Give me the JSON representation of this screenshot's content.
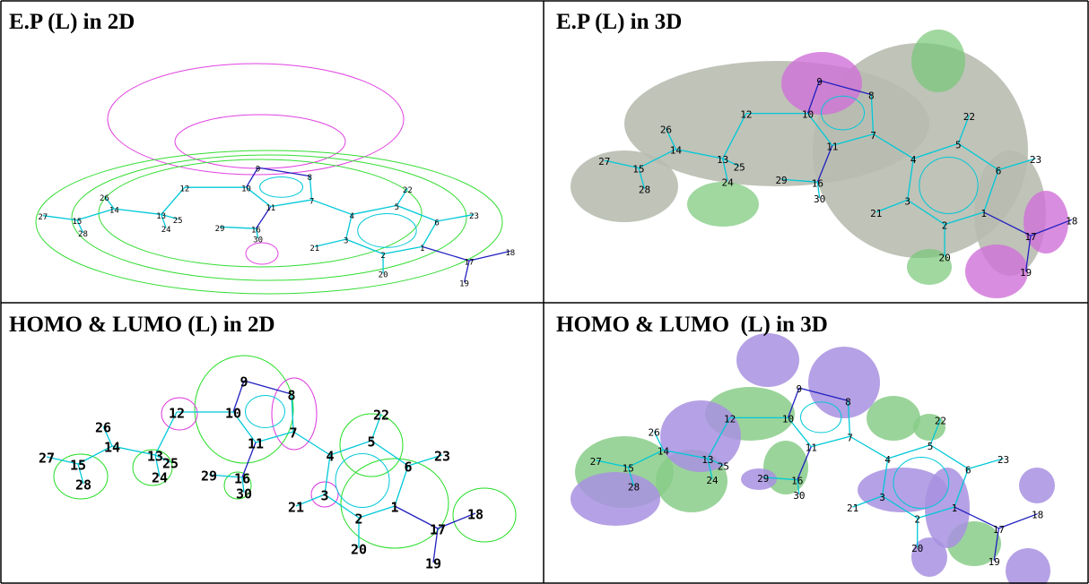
{
  "panels": [
    {
      "title": "E.P (L) in 2D",
      "atom_labels": [
        "1",
        "2",
        "3",
        "4",
        "5",
        "6",
        "7",
        "8",
        "9",
        "10",
        "11",
        "12",
        "13",
        "14",
        "15",
        "16",
        "17",
        "18",
        "19",
        "20",
        "21",
        "22",
        "23",
        "24",
        "25",
        "26",
        "27",
        "28",
        "29",
        "30"
      ]
    },
    {
      "title": "E.P (L) in 3D",
      "atom_labels": [
        "1",
        "2",
        "3",
        "4",
        "5",
        "6",
        "7",
        "8",
        "9",
        "10",
        "11",
        "12",
        "13",
        "14",
        "15",
        "16",
        "17",
        "18",
        "19",
        "20",
        "21",
        "22",
        "23",
        "24",
        "25",
        "26",
        "27",
        "28",
        "29",
        "30"
      ]
    },
    {
      "title": "HOMO & LUMO (L) in 2D",
      "atom_labels": [
        "1",
        "2",
        "3",
        "4",
        "5",
        "6",
        "7",
        "8",
        "9",
        "10",
        "11",
        "12",
        "13",
        "14",
        "15",
        "16",
        "17",
        "18",
        "19",
        "20",
        "21",
        "22",
        "23",
        "24",
        "25",
        "26",
        "27",
        "28",
        "29",
        "30"
      ]
    },
    {
      "title": "HOMO & LUMO  (L) in 3D",
      "atom_labels": [
        "1",
        "2",
        "3",
        "4",
        "5",
        "6",
        "7",
        "8",
        "9",
        "10",
        "11",
        "12",
        "13",
        "14",
        "15",
        "16",
        "17",
        "18",
        "19",
        "20",
        "21",
        "22",
        "23",
        "24",
        "25",
        "26",
        "27",
        "28",
        "29",
        "30"
      ]
    }
  ]
}
